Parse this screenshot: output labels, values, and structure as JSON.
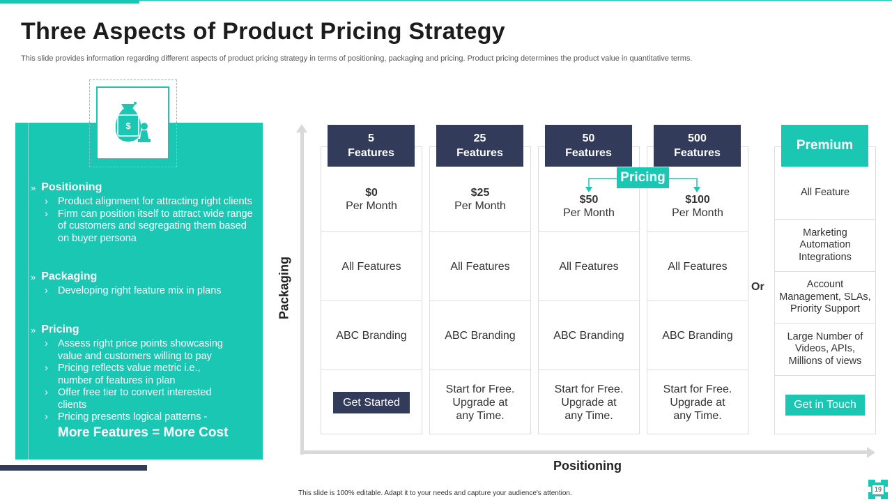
{
  "slide": {
    "title": "Three Aspects of Product Pricing Strategy",
    "subtitle": "This slide provides information regarding different aspects of product pricing strategy in terms of positioning, packaging and pricing. Product pricing determines the product value in quantitative terms.",
    "footer": "This slide is 100% editable. Adapt it to your needs and capture your audience's attention.",
    "page_number": "19"
  },
  "colors": {
    "accent": "#19c7b3",
    "navy": "#333b5a"
  },
  "icons": {
    "panel_icon": "money-bag-chess-pawn-icon"
  },
  "sections": [
    {
      "heading": "Positioning",
      "bullets": [
        "Product alignment for attracting right clients",
        "Firm can position itself to attract wide range of customers and segregating them based on buyer persona"
      ]
    },
    {
      "heading": "Packaging",
      "bullets": [
        "Developing right feature mix in plans"
      ]
    },
    {
      "heading": "Pricing",
      "bullets": [
        "Assess right price points showcasing value and customers willing to pay",
        "Pricing reflects value metric i.e., number of features in plan",
        "Offer free tier to convert interested clients",
        "Pricing presents logical patterns -"
      ],
      "highlight": "More Features = More Cost"
    }
  ],
  "axes": {
    "y_label": "Packaging",
    "x_label": "Positioning"
  },
  "plans": [
    {
      "count": "5",
      "unit": "Features",
      "price": "$0",
      "period": "Per Month",
      "features": "All Features",
      "branding": "ABC Branding",
      "cta_button": "Get Started"
    },
    {
      "count": "25",
      "unit": "Features",
      "price": "$25",
      "period": "Per Month",
      "features": "All Features",
      "branding": "ABC Branding",
      "cta_l1": "Start for Free.",
      "cta_l2": "Upgrade at",
      "cta_l3": "any Time."
    },
    {
      "count": "50",
      "unit": "Features",
      "price": "$50",
      "period": "Per Month",
      "features": "All Features",
      "branding": "ABC Branding",
      "cta_l1": "Start for Free.",
      "cta_l2": "Upgrade at",
      "cta_l3": "any Time."
    },
    {
      "count": "500",
      "unit": "Features",
      "price": "$100",
      "period": "Per Month",
      "features": "All Features",
      "branding": "ABC Branding",
      "cta_l1": "Start for Free.",
      "cta_l2": "Upgrade at",
      "cta_l3": "any Time."
    }
  ],
  "pricing_badge": "Pricing",
  "or_label": "Or",
  "premium": {
    "title": "Premium",
    "items": [
      "All Feature",
      "Marketing Automation Integrations",
      "Account Management, SLAs, Priority Support",
      "Large Number of Videos, APIs, Millions of views"
    ],
    "cta_button": "Get in Touch"
  }
}
